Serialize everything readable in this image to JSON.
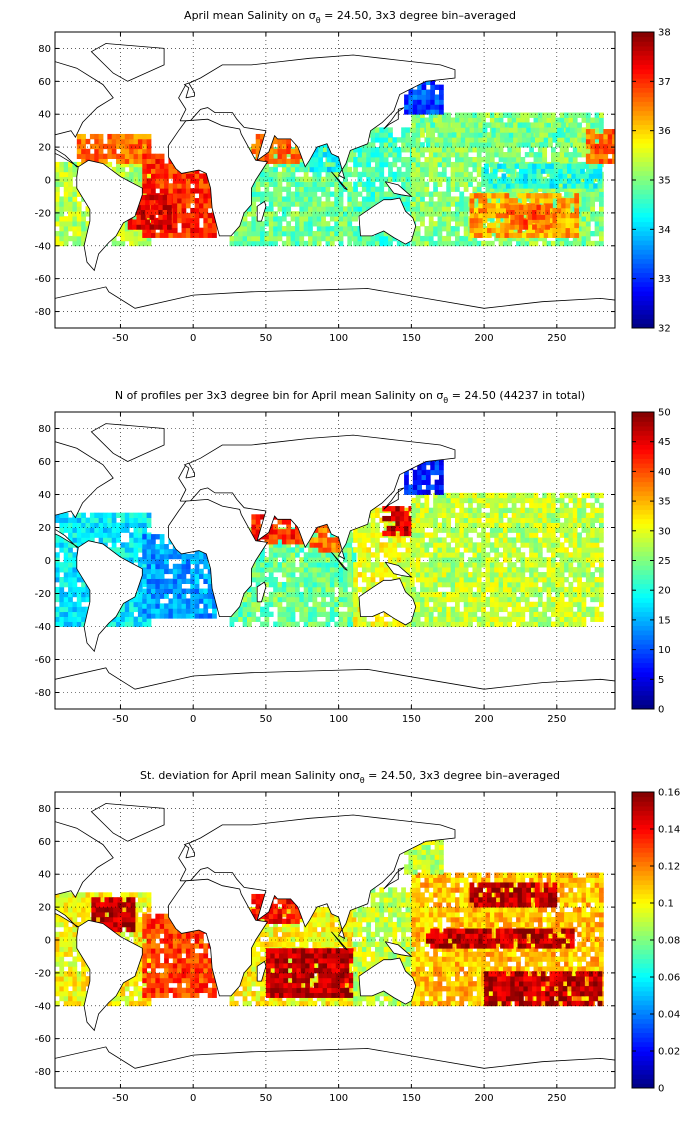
{
  "chart_data": [
    {
      "type": "heatmap",
      "title": "April mean Salinity on σθ = 24.50, 3x3 degree bin–averaged",
      "title_parts": {
        "pre": "April mean Salinity on ",
        "sym": "σ",
        "sub": "θ",
        "post": " = 24.50, 3x3 degree bin–averaged"
      },
      "xlim": [
        -95,
        290
      ],
      "ylim": [
        -90,
        90
      ],
      "xticks": [
        -50,
        0,
        50,
        100,
        150,
        200,
        250
      ],
      "yticks": [
        -80,
        -60,
        -40,
        -20,
        0,
        20,
        40,
        60,
        80
      ],
      "grid": true,
      "colorbar": {
        "min": 32,
        "max": 38,
        "ticks": [
          32,
          33,
          34,
          35,
          36,
          37,
          38
        ],
        "colormap": "jet"
      },
      "regions": [
        {
          "lon": [
            -95,
            -30
          ],
          "lat": [
            -40,
            10
          ],
          "value": 35.3
        },
        {
          "lon": [
            -80,
            -30
          ],
          "lat": [
            10,
            28
          ],
          "value": 36.6
        },
        {
          "lon": [
            -35,
            15
          ],
          "lat": [
            -35,
            15
          ],
          "value": 37.0
        },
        {
          "lon": [
            -45,
            -15
          ],
          "lat": [
            -30,
            -10
          ],
          "value": 37.4
        },
        {
          "lon": [
            25,
            110
          ],
          "lat": [
            -40,
            20
          ],
          "value": 34.9
        },
        {
          "lon": [
            40,
            75
          ],
          "lat": [
            10,
            27
          ],
          "value": 36.6
        },
        {
          "lon": [
            80,
            100
          ],
          "lat": [
            5,
            22
          ],
          "value": 34.2
        },
        {
          "lon": [
            110,
            150
          ],
          "lat": [
            -40,
            30
          ],
          "value": 34.7
        },
        {
          "lon": [
            150,
            280
          ],
          "lat": [
            -40,
            40
          ],
          "value": 35.0
        },
        {
          "lon": [
            160,
            260
          ],
          "lat": [
            20,
            35
          ],
          "value": 34.9
        },
        {
          "lon": [
            190,
            265
          ],
          "lat": [
            -35,
            -10
          ],
          "value": 36.3
        },
        {
          "lon": [
            215,
            245
          ],
          "lat": [
            -30,
            -15
          ],
          "value": 36.7
        },
        {
          "lon": [
            200,
            280
          ],
          "lat": [
            -5,
            10
          ],
          "value": 34.4
        },
        {
          "lon": [
            270,
            290
          ],
          "lat": [
            10,
            30
          ],
          "value": 36.6
        },
        {
          "lon": [
            145,
            170
          ],
          "lat": [
            40,
            60
          ],
          "value": 33.2
        }
      ]
    },
    {
      "type": "heatmap",
      "title": "N of profiles per 3x3 degree bin for April mean Salinity on σθ = 24.50 (44237 in total)",
      "title_parts": {
        "pre": "N of profiles per 3x3 degree bin for April mean Salinity on ",
        "sym": "σ",
        "sub": "θ",
        "post": " = 24.50 (44237 in total)"
      },
      "xlim": [
        -95,
        290
      ],
      "ylim": [
        -90,
        90
      ],
      "xticks": [
        -50,
        0,
        50,
        100,
        150,
        200,
        250
      ],
      "yticks": [
        -80,
        -60,
        -40,
        -20,
        0,
        20,
        40,
        60,
        80
      ],
      "grid": true,
      "colorbar": {
        "min": 0,
        "max": 50,
        "ticks": [
          0,
          5,
          10,
          15,
          20,
          25,
          30,
          35,
          40,
          45,
          50
        ],
        "colormap": "jet"
      },
      "regions": [
        {
          "lon": [
            -95,
            -30
          ],
          "lat": [
            -40,
            28
          ],
          "value": 18
        },
        {
          "lon": [
            -35,
            15
          ],
          "lat": [
            -35,
            15
          ],
          "value": 14
        },
        {
          "lon": [
            25,
            110
          ],
          "lat": [
            -40,
            20
          ],
          "value": 24
        },
        {
          "lon": [
            40,
            75
          ],
          "lat": [
            10,
            27
          ],
          "value": 42
        },
        {
          "lon": [
            80,
            100
          ],
          "lat": [
            5,
            22
          ],
          "value": 38
        },
        {
          "lon": [
            110,
            150
          ],
          "lat": [
            -40,
            30
          ],
          "value": 30
        },
        {
          "lon": [
            130,
            155
          ],
          "lat": [
            15,
            32
          ],
          "value": 46
        },
        {
          "lon": [
            150,
            280
          ],
          "lat": [
            -40,
            40
          ],
          "value": 28
        },
        {
          "lon": [
            145,
            170
          ],
          "lat": [
            40,
            60
          ],
          "value": 8
        }
      ]
    },
    {
      "type": "heatmap",
      "title": "St. deviation for April mean Salinity onσθ = 24.50, 3x3 degree bin–averaged",
      "title_parts": {
        "pre": "St. deviation for April mean Salinity on",
        "sym": "σ",
        "sub": "θ",
        "post": " = 24.50, 3x3 degree bin–averaged"
      },
      "xlim": [
        -95,
        290
      ],
      "ylim": [
        -90,
        90
      ],
      "xticks": [
        -50,
        0,
        50,
        100,
        150,
        200,
        250
      ],
      "yticks": [
        -80,
        -60,
        -40,
        -20,
        0,
        20,
        40,
        60,
        80
      ],
      "grid": true,
      "colorbar": {
        "min": 0,
        "max": 0.16,
        "ticks": [
          0,
          0.02,
          0.04,
          0.06,
          0.08,
          0.1,
          0.12,
          0.14,
          0.16
        ],
        "colormap": "jet"
      },
      "regions": [
        {
          "lon": [
            -95,
            -30
          ],
          "lat": [
            -40,
            28
          ],
          "value": 0.1
        },
        {
          "lon": [
            -70,
            -40
          ],
          "lat": [
            5,
            25
          ],
          "value": 0.15
        },
        {
          "lon": [
            -35,
            15
          ],
          "lat": [
            -35,
            15
          ],
          "value": 0.13
        },
        {
          "lon": [
            25,
            110
          ],
          "lat": [
            -40,
            20
          ],
          "value": 0.1
        },
        {
          "lon": [
            50,
            110
          ],
          "lat": [
            -35,
            -5
          ],
          "value": 0.15
        },
        {
          "lon": [
            40,
            75
          ],
          "lat": [
            10,
            27
          ],
          "value": 0.14
        },
        {
          "lon": [
            110,
            150
          ],
          "lat": [
            -40,
            30
          ],
          "value": 0.09
        },
        {
          "lon": [
            150,
            280
          ],
          "lat": [
            -40,
            40
          ],
          "value": 0.11
        },
        {
          "lon": [
            160,
            260
          ],
          "lat": [
            -5,
            5
          ],
          "value": 0.15
        },
        {
          "lon": [
            200,
            280
          ],
          "lat": [
            -40,
            -20
          ],
          "value": 0.15
        },
        {
          "lon": [
            190,
            250
          ],
          "lat": [
            20,
            35
          ],
          "value": 0.15
        },
        {
          "lon": [
            145,
            170
          ],
          "lat": [
            40,
            60
          ],
          "value": 0.09
        }
      ]
    }
  ]
}
